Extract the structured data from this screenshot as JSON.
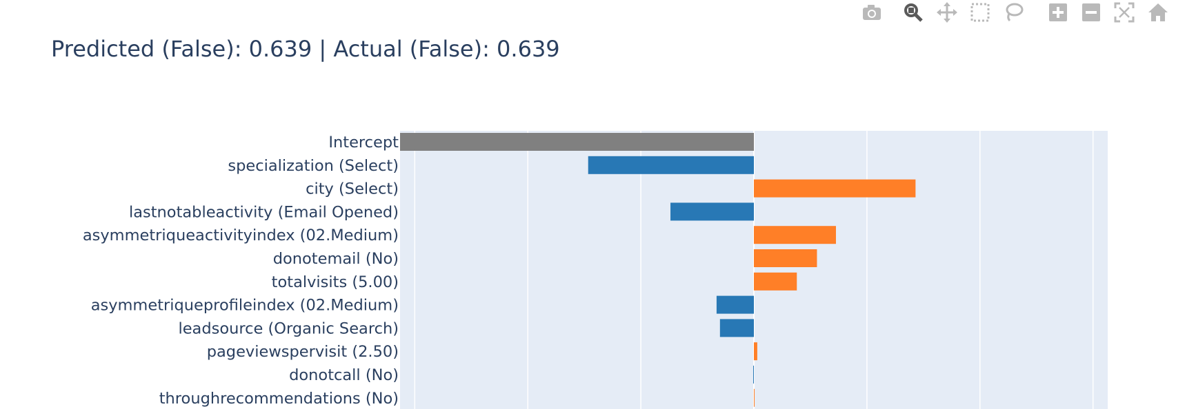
{
  "title": "Predicted (False): 0.639 | Actual (False): 0.639",
  "modebar": [
    {
      "name": "camera-icon",
      "title": "Download plot as a png"
    },
    {
      "name": "zoom-icon",
      "title": "Zoom"
    },
    {
      "name": "pan-icon",
      "title": "Pan"
    },
    {
      "name": "box-select-icon",
      "title": "Box Select"
    },
    {
      "name": "lasso-select-icon",
      "title": "Lasso Select"
    },
    {
      "name": "zoom-in-icon",
      "title": "Zoom in"
    },
    {
      "name": "zoom-out-icon",
      "title": "Zoom out"
    },
    {
      "name": "autoscale-icon",
      "title": "Autoscale"
    },
    {
      "name": "reset-axes-icon",
      "title": "Reset axes"
    }
  ],
  "colors": {
    "negative": "#2878b5",
    "positive": "#ff7f27",
    "intercept": "#808080",
    "plot_bg": "#e5ecf6",
    "grid": "#ffffff",
    "text": "#2a3f5f",
    "modebar_icon": "#b9b9b9",
    "modebar_active": "#5a5a5a"
  },
  "chart_data": {
    "type": "bar",
    "orientation": "horizontal",
    "title": "Predicted (False): 0.639 | Actual (False): 0.639",
    "categories": [
      "Intercept",
      "specialization (Select)",
      "city (Select)",
      "lastnotableactivity (Email Opened)",
      "asymmetriqueactivityindex (02.Medium)",
      "donotemail (No)",
      "totalvisits (5.00)",
      "asymmetriqueprofileindex (02.Medium)",
      "leadsource (Organic Search)",
      "pageviewspervisit (2.50)",
      "donotcall (No)",
      "throughrecommendations (No)"
    ],
    "values": [
      -1.565,
      -0.733,
      0.715,
      -0.369,
      0.363,
      0.279,
      0.19,
      -0.165,
      -0.15,
      0.015,
      -0.003,
      0.002
    ],
    "series_colors": [
      "intercept",
      "negative",
      "positive",
      "negative",
      "positive",
      "positive",
      "positive",
      "negative",
      "negative",
      "positive",
      "negative",
      "positive"
    ],
    "xlim": [
      -1.565,
      1.565
    ],
    "gridlines_x": [
      -1.5,
      -1.0,
      -0.5,
      0.0,
      0.5,
      1.0,
      1.5
    ],
    "grid": true,
    "xlabel": "",
    "ylabel": ""
  }
}
